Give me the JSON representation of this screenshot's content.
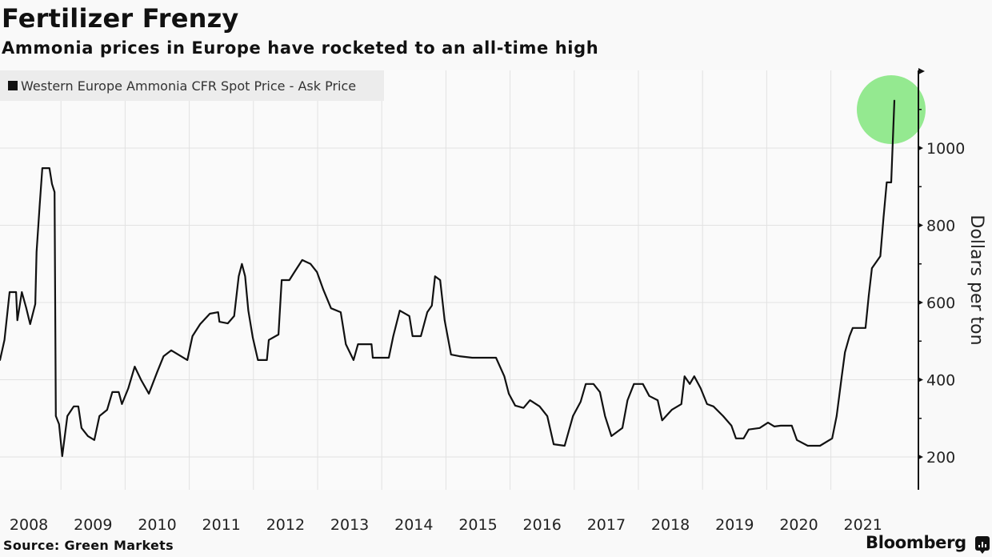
{
  "chart_data": {
    "type": "line",
    "title": "Fertilizer Frenzy",
    "subtitle": "Ammonia prices in Europe have rocketed to an all-time high",
    "xlabel": "",
    "ylabel": "Dollars per ton",
    "ylim": [
      110,
      1200
    ],
    "xlim": [
      2008,
      2022.2
    ],
    "yticks": [
      200,
      400,
      600,
      800,
      1000
    ],
    "ytick_labels": [
      "200",
      "400",
      "600",
      "800",
      "1000"
    ],
    "xtick_labels": [
      "2008",
      "2009",
      "2010",
      "2011",
      "2012",
      "2013",
      "2014",
      "2015",
      "2016",
      "2017",
      "2018",
      "2019",
      "2020",
      "2021"
    ],
    "grid": true,
    "legend_position": "top-left",
    "highlight": {
      "label": "all-time high",
      "x": 2021.99,
      "y": 1124,
      "color": "#8ee88a"
    },
    "series": [
      {
        "name": "Western Europe Ammonia CFR Spot Price - Ask Price",
        "color": "#111111",
        "x": [
          2008.0,
          2008.05,
          2008.12,
          2008.2,
          2008.3,
          2008.32,
          2008.39,
          2008.46,
          2008.52,
          2008.6,
          2008.62,
          2008.67,
          2008.71,
          2008.82,
          2008.86,
          2008.9,
          2008.92,
          2008.97,
          2009.02,
          2009.1,
          2009.2,
          2009.27,
          2009.32,
          2009.42,
          2009.52,
          2009.6,
          2009.72,
          2009.8,
          2009.9,
          2009.95,
          2010.05,
          2010.15,
          2010.25,
          2010.37,
          2010.5,
          2010.6,
          2010.72,
          2010.97,
          2011.05,
          2011.17,
          2011.32,
          2011.45,
          2011.47,
          2011.6,
          2011.7,
          2011.77,
          2011.82,
          2011.87,
          2011.92,
          2011.99,
          2012.07,
          2012.21,
          2012.24,
          2012.39,
          2012.44,
          2012.56,
          2012.64,
          2012.76,
          2012.89,
          2012.99,
          2013.09,
          2013.21,
          2013.36,
          2013.44,
          2013.56,
          2013.63,
          2013.84,
          2013.86,
          2014.11,
          2014.18,
          2014.28,
          2014.43,
          2014.48,
          2014.61,
          2014.71,
          2014.78,
          2014.83,
          2014.91,
          2014.98,
          2015.08,
          2015.21,
          2015.41,
          2015.58,
          2015.78,
          2015.91,
          2015.98,
          2016.08,
          2016.21,
          2016.31,
          2016.46,
          2016.58,
          2016.68,
          2016.85,
          2016.98,
          2017.1,
          2017.18,
          2017.3,
          2017.4,
          2017.48,
          2017.58,
          2017.75,
          2017.83,
          2017.93,
          2018.07,
          2018.17,
          2018.3,
          2018.37,
          2018.52,
          2018.67,
          2018.72,
          2018.8,
          2018.87,
          2018.97,
          2019.07,
          2019.17,
          2019.32,
          2019.45,
          2019.52,
          2019.64,
          2019.72,
          2019.89,
          2020.02,
          2020.12,
          2020.22,
          2020.39,
          2020.47,
          2020.64,
          2020.83,
          2021.02,
          2021.09,
          2021.17,
          2021.22,
          2021.29,
          2021.34,
          2021.42,
          2021.54,
          2021.59,
          2021.64,
          2021.77,
          2021.82,
          2021.87,
          2021.94,
          2021.99
        ],
        "y": [
          451,
          451,
          503,
          627,
          627,
          554,
          627,
          585,
          544,
          596,
          731,
          855,
          948,
          948,
          907,
          886,
          306,
          285,
          202,
          306,
          331,
          331,
          275,
          254,
          244,
          306,
          322,
          368,
          368,
          337,
          378,
          434,
          399,
          364,
          420,
          461,
          476,
          451,
          513,
          544,
          571,
          575,
          550,
          546,
          565,
          668,
          700,
          668,
          579,
          509,
          451,
          451,
          503,
          517,
          658,
          658,
          679,
          710,
          700,
          679,
          633,
          585,
          575,
          492,
          451,
          492,
          492,
          457,
          457,
          513,
          579,
          565,
          513,
          513,
          575,
          592,
          668,
          658,
          554,
          465,
          461,
          457,
          457,
          457,
          409,
          364,
          333,
          327,
          347,
          331,
          306,
          233,
          229,
          306,
          343,
          389,
          389,
          368,
          306,
          254,
          275,
          347,
          389,
          389,
          358,
          347,
          295,
          322,
          337,
          409,
          389,
          409,
          378,
          337,
          331,
          306,
          281,
          248,
          248,
          271,
          275,
          289,
          279,
          281,
          281,
          244,
          229,
          229,
          248,
          306,
          409,
          471,
          513,
          534,
          534,
          534,
          617,
          689,
          720,
          820,
          911,
          911,
          1124
        ]
      }
    ]
  },
  "header": {
    "title": "Fertilizer Frenzy",
    "subtitle": "Ammonia prices in Europe have rocketed to an all-time high"
  },
  "legend": {
    "label": "Western Europe Ammonia CFR Spot Price - Ask Price"
  },
  "footer": {
    "source": "Source: Green Markets",
    "brand": "Bloomberg"
  }
}
